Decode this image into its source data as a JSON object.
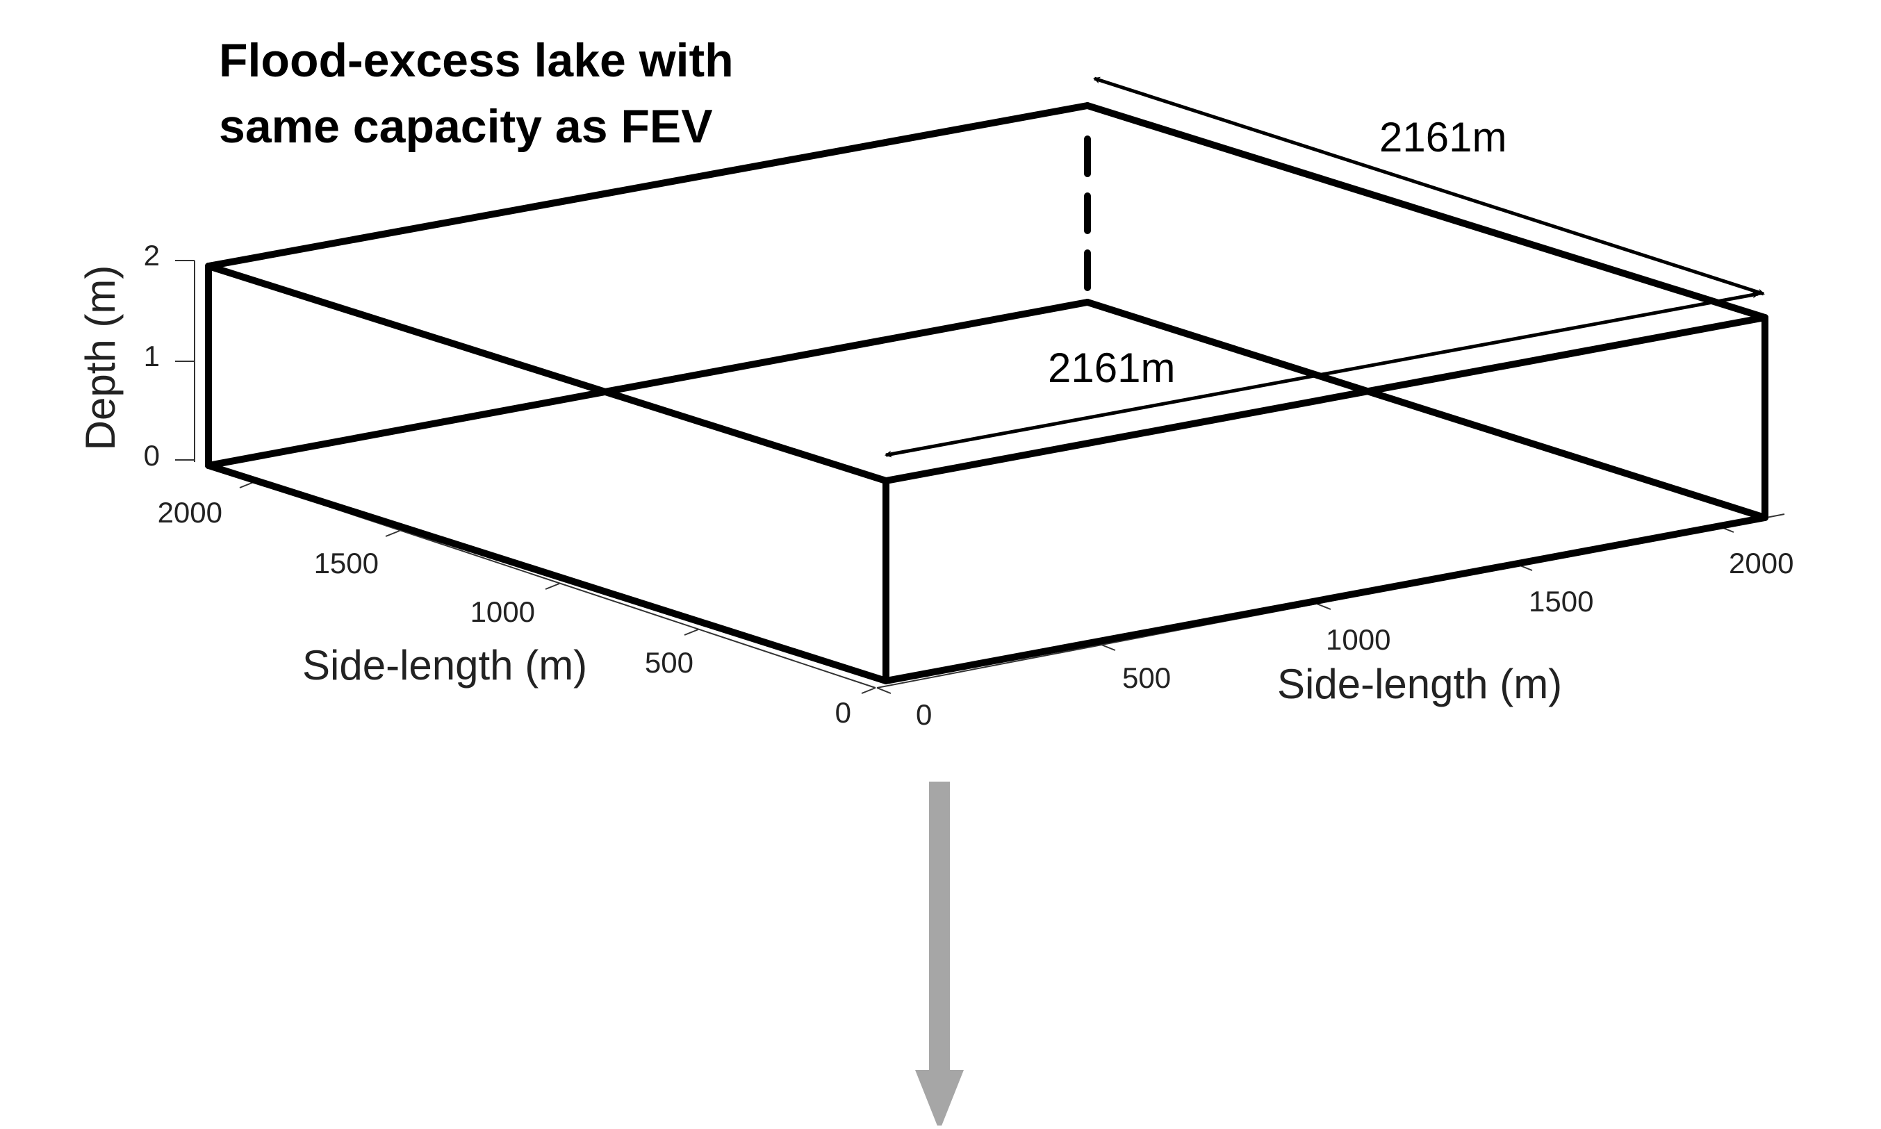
{
  "title_lines": [
    "Flood-excess lake with",
    "same capacity as FEV"
  ],
  "dimension_labels": {
    "top_right_edge": "2161m",
    "inner_edge": "2161m"
  },
  "depth_axis": {
    "label": "Depth (m)",
    "ticks": [
      "0",
      "1",
      "2"
    ]
  },
  "left_axis": {
    "label": "Side-length (m)",
    "ticks": [
      "0",
      "500",
      "1000",
      "1500",
      "2000"
    ]
  },
  "right_axis": {
    "label": "Side-length (m)",
    "ticks": [
      "0",
      "500",
      "1000",
      "1500",
      "2000"
    ]
  },
  "colors": {
    "box_edges": "#000000",
    "down_arrow": "#a6a6a6",
    "text": "#222222"
  }
}
